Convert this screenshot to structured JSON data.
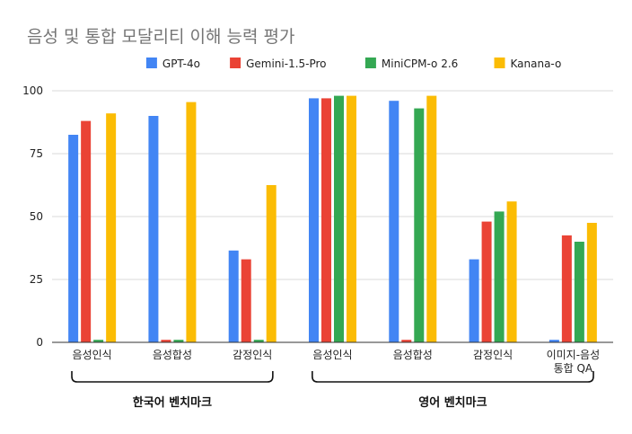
{
  "chart_data": {
    "type": "bar",
    "title": "음성 및 통합 모달리티 이해 능력 평가",
    "xlabel": "",
    "ylabel": "",
    "ylim": [
      0,
      100
    ],
    "yticks": [
      0,
      25,
      50,
      75,
      100
    ],
    "grid": true,
    "legend_position": "top",
    "categories": [
      [
        "음성인식"
      ],
      [
        "음성합성"
      ],
      [
        "감정인식"
      ],
      [
        "음성인식"
      ],
      [
        "음성합성"
      ],
      [
        "감정인식"
      ],
      [
        "이미지-음성",
        "통합 QA"
      ]
    ],
    "groups": [
      {
        "label": "한국어 벤치마크",
        "categories": [
          0,
          1,
          2
        ]
      },
      {
        "label": "영어 벤치마크",
        "categories": [
          3,
          4,
          5,
          6
        ]
      }
    ],
    "series": [
      {
        "name": "GPT-4o",
        "color": "#4285F4",
        "values": [
          82.5,
          90,
          36.5,
          97,
          96,
          33,
          1
        ]
      },
      {
        "name": "Gemini-1.5-Pro",
        "color": "#EA4335",
        "values": [
          88,
          1,
          33,
          97,
          1,
          48,
          42.5
        ]
      },
      {
        "name": "MiniCPM-o 2.6",
        "color": "#34A853",
        "values": [
          1,
          1,
          1,
          98,
          93,
          52,
          40
        ]
      },
      {
        "name": "Kanana-o",
        "color": "#FBBC04",
        "values": [
          91,
          95.5,
          62.5,
          98,
          98,
          56,
          47.5
        ]
      }
    ]
  }
}
